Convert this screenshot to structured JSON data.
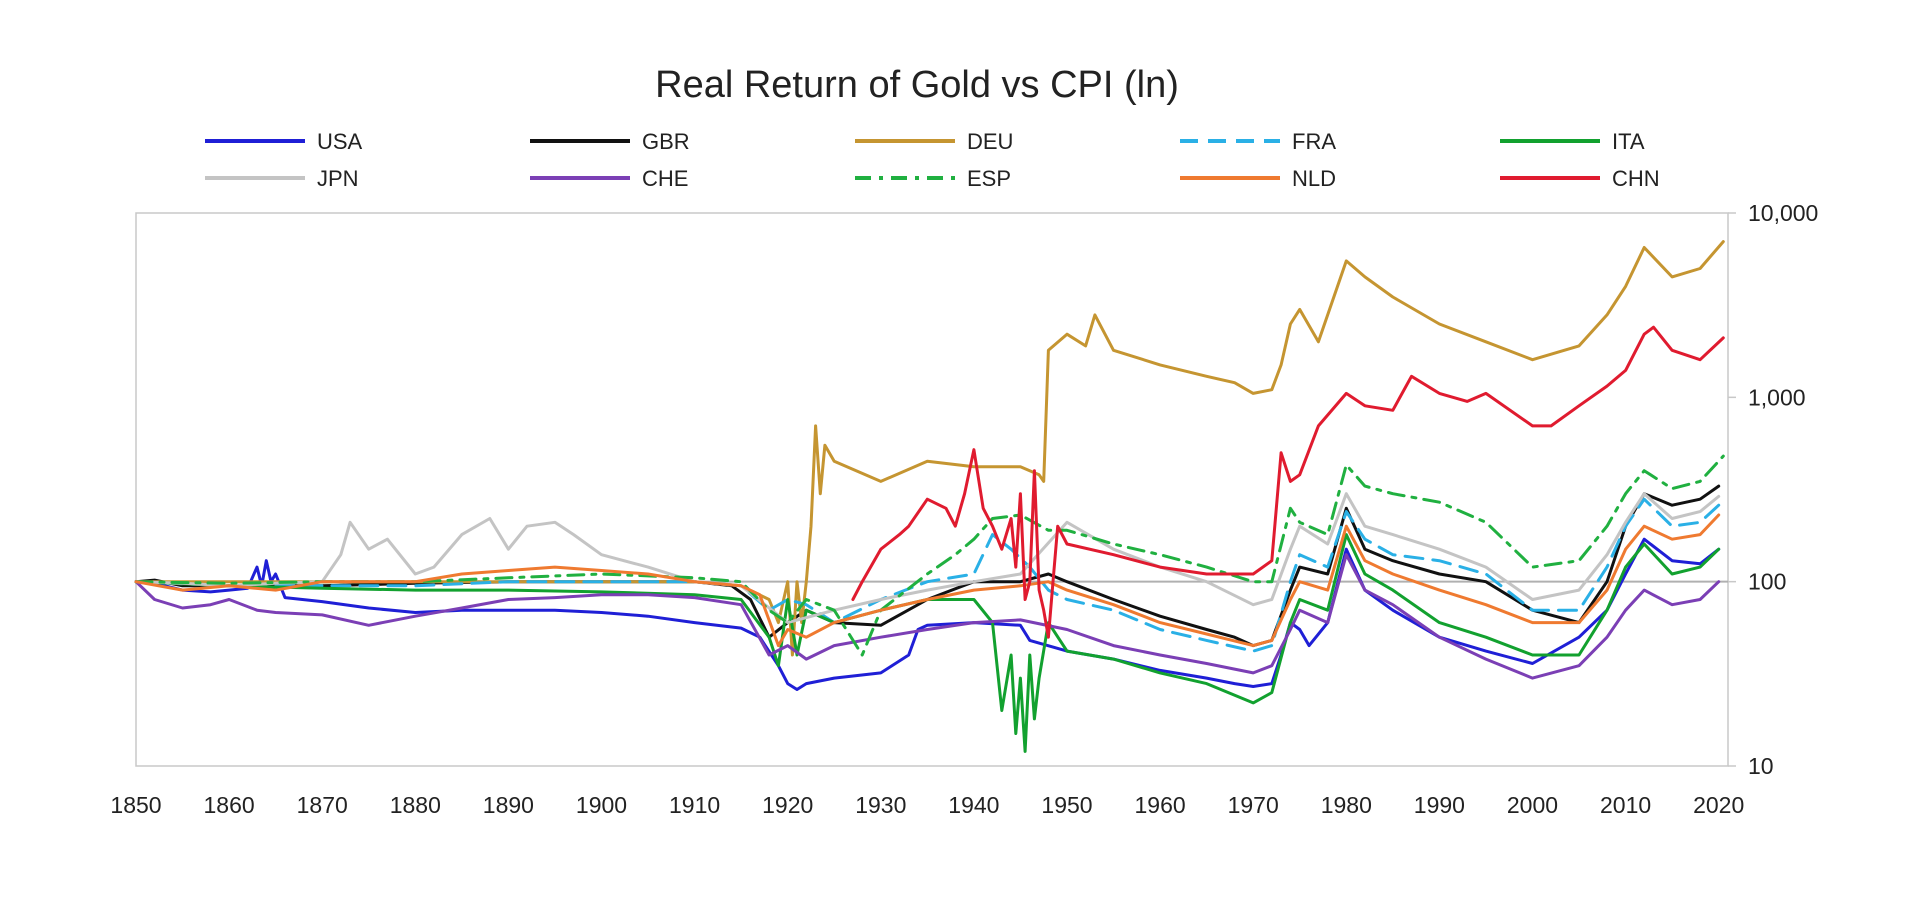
{
  "chart_data": {
    "type": "line",
    "title": "Real Return of Gold vs CPI (ln)",
    "xlabel": "",
    "ylabel": "",
    "y_scale": "log",
    "xlim": [
      1850,
      2021
    ],
    "ylim": [
      10,
      10000
    ],
    "reference_line": 100,
    "reference_color": "#b0b0b0",
    "grid": false,
    "legend_position": "top",
    "x_ticks": [
      {
        "value": 1850,
        "label": "1850"
      },
      {
        "value": 1860,
        "label": "1860"
      },
      {
        "value": 1870,
        "label": "1870"
      },
      {
        "value": 1880,
        "label": "1880"
      },
      {
        "value": 1890,
        "label": "1890"
      },
      {
        "value": 1900,
        "label": "1900"
      },
      {
        "value": 1910,
        "label": "1910"
      },
      {
        "value": 1920,
        "label": "1920"
      },
      {
        "value": 1930,
        "label": "1930"
      },
      {
        "value": 1940,
        "label": "1940"
      },
      {
        "value": 1950,
        "label": "1950"
      },
      {
        "value": 1960,
        "label": "1960"
      },
      {
        "value": 1970,
        "label": "1970"
      },
      {
        "value": 1980,
        "label": "1980"
      },
      {
        "value": 1990,
        "label": "1990"
      },
      {
        "value": 2000,
        "label": "2000"
      },
      {
        "value": 2010,
        "label": "2010"
      },
      {
        "value": 2020,
        "label": "2020"
      }
    ],
    "y_ticks": [
      {
        "value": 10,
        "label": "10"
      },
      {
        "value": 100,
        "label": "100"
      },
      {
        "value": 1000,
        "label": "1,000"
      },
      {
        "value": 10000,
        "label": "10,000"
      }
    ],
    "series": [
      {
        "name": "USA",
        "color": "#1f1fd6",
        "dash": "",
        "x": [
          1850,
          1852,
          1855,
          1858,
          1860,
          1862,
          1863,
          1863.5,
          1864,
          1864.5,
          1865,
          1866,
          1870,
          1875,
          1880,
          1885,
          1890,
          1895,
          1900,
          1905,
          1910,
          1915,
          1917,
          1919,
          1920,
          1921,
          1922,
          1925,
          1930,
          1933,
          1934,
          1935,
          1940,
          1945,
          1946,
          1950,
          1955,
          1960,
          1965,
          1968,
          1970,
          1972,
          1973,
          1974,
          1975,
          1976,
          1978,
          1980,
          1982,
          1985,
          1990,
          1995,
          2000,
          2005,
          2008,
          2010,
          2012,
          2015,
          2018,
          2020
        ],
        "y": [
          100,
          98,
          90,
          88,
          90,
          92,
          120,
          95,
          130,
          100,
          110,
          82,
          78,
          72,
          68,
          70,
          70,
          70,
          68,
          65,
          60,
          56,
          50,
          35,
          28,
          26,
          28,
          30,
          32,
          40,
          55,
          58,
          60,
          58,
          48,
          42,
          38,
          33,
          30,
          28,
          27,
          28,
          40,
          60,
          55,
          45,
          60,
          150,
          90,
          70,
          50,
          42,
          36,
          50,
          70,
          110,
          170,
          130,
          125,
          150
        ]
      },
      {
        "name": "GBR",
        "color": "#111111",
        "dash": "",
        "x": [
          1850,
          1852,
          1855,
          1860,
          1870,
          1880,
          1890,
          1900,
          1910,
          1914,
          1916,
          1918,
          1920,
          1922,
          1925,
          1930,
          1935,
          1940,
          1945,
          1948,
          1950,
          1955,
          1960,
          1965,
          1968,
          1970,
          1972,
          1974,
          1975,
          1978,
          1980,
          1982,
          1985,
          1990,
          1995,
          2000,
          2005,
          2008,
          2010,
          2012,
          2015,
          2018,
          2020
        ],
        "y": [
          100,
          102,
          95,
          95,
          95,
          98,
          100,
          100,
          100,
          95,
          80,
          50,
          60,
          70,
          60,
          58,
          80,
          100,
          100,
          110,
          100,
          80,
          65,
          55,
          50,
          45,
          48,
          90,
          120,
          110,
          250,
          150,
          130,
          110,
          100,
          70,
          60,
          100,
          200,
          300,
          260,
          280,
          330
        ]
      },
      {
        "name": "DEU",
        "color": "#c59531",
        "dash": "",
        "x": [
          1850,
          1860,
          1870,
          1880,
          1890,
          1900,
          1910,
          1915,
          1918,
          1919,
          1920,
          1920.5,
          1921,
          1921.5,
          1922,
          1922.5,
          1923,
          1923.5,
          1924,
          1925,
          1930,
          1935,
          1940,
          1945,
          1947,
          1947.5,
          1948,
          1950,
          1952,
          1953,
          1955,
          1960,
          1965,
          1968,
          1970,
          1972,
          1973,
          1974,
          1975,
          1977,
          1980,
          1982,
          1985,
          1990,
          1995,
          2000,
          2005,
          2008,
          2010,
          2012,
          2015,
          2018,
          2020.5
        ],
        "y": [
          100,
          100,
          100,
          100,
          100,
          100,
          100,
          95,
          80,
          60,
          100,
          40,
          100,
          60,
          100,
          200,
          700,
          300,
          550,
          450,
          350,
          450,
          420,
          420,
          380,
          350,
          1800,
          2200,
          1900,
          2800,
          1800,
          1500,
          1300,
          1200,
          1050,
          1100,
          1500,
          2500,
          3000,
          2000,
          5500,
          4500,
          3500,
          2500,
          2000,
          1600,
          1900,
          2800,
          4000,
          6500,
          4500,
          5000,
          7000
        ]
      },
      {
        "name": "FRA",
        "color": "#2ab0e6",
        "dash": "18,10",
        "x": [
          1850,
          1860,
          1870,
          1880,
          1890,
          1900,
          1910,
          1915,
          1918,
          1920,
          1922,
          1925,
          1930,
          1935,
          1940,
          1942,
          1944,
          1946,
          1948,
          1950,
          1955,
          1960,
          1965,
          1970,
          1972,
          1974,
          1975,
          1978,
          1980,
          1982,
          1985,
          1990,
          1995,
          2000,
          2005,
          2008,
          2010,
          2012,
          2015,
          2018,
          2020
        ],
        "y": [
          100,
          95,
          95,
          95,
          100,
          100,
          100,
          95,
          70,
          80,
          75,
          60,
          80,
          100,
          110,
          180,
          150,
          120,
          90,
          80,
          70,
          55,
          48,
          42,
          45,
          100,
          140,
          120,
          240,
          170,
          140,
          130,
          110,
          70,
          70,
          120,
          200,
          280,
          200,
          210,
          260
        ]
      },
      {
        "name": "ITA",
        "color": "#12a12f",
        "dash": "",
        "x": [
          1850,
          1860,
          1870,
          1880,
          1890,
          1900,
          1910,
          1915,
          1918,
          1919,
          1920,
          1921,
          1922,
          1925,
          1930,
          1935,
          1940,
          1942,
          1943,
          1944,
          1944.5,
          1945,
          1945.5,
          1946,
          1946.5,
          1947,
          1948,
          1950,
          1955,
          1960,
          1965,
          1970,
          1972,
          1974,
          1975,
          1978,
          1980,
          1982,
          1985,
          1990,
          1995,
          2000,
          2005,
          2008,
          2010,
          2012,
          2015,
          2018,
          2020
        ],
        "y": [
          100,
          95,
          92,
          90,
          90,
          88,
          85,
          80,
          50,
          35,
          80,
          40,
          70,
          60,
          70,
          80,
          80,
          60,
          20,
          40,
          15,
          30,
          12,
          40,
          18,
          30,
          60,
          42,
          38,
          32,
          28,
          22,
          25,
          60,
          80,
          70,
          180,
          110,
          90,
          60,
          50,
          40,
          40,
          70,
          120,
          160,
          110,
          120,
          150
        ]
      },
      {
        "name": "JPN",
        "color": "#c4c4c4",
        "dash": "",
        "x": [
          1850,
          1855,
          1860,
          1865,
          1870,
          1872,
          1873,
          1875,
          1877,
          1880,
          1882,
          1885,
          1888,
          1890,
          1892,
          1895,
          1897,
          1900,
          1905,
          1910,
          1915,
          1920,
          1925,
          1930,
          1935,
          1940,
          1945,
          1950,
          1955,
          1960,
          1965,
          1970,
          1972,
          1974,
          1975,
          1978,
          1980,
          1982,
          1985,
          1990,
          1995,
          2000,
          2005,
          2008,
          2010,
          2012,
          2015,
          2018,
          2020
        ],
        "y": [
          100,
          98,
          95,
          98,
          100,
          140,
          210,
          150,
          170,
          110,
          120,
          180,
          220,
          150,
          200,
          210,
          180,
          140,
          120,
          100,
          95,
          60,
          70,
          80,
          90,
          100,
          110,
          210,
          150,
          120,
          100,
          75,
          80,
          150,
          200,
          160,
          300,
          200,
          180,
          150,
          120,
          80,
          90,
          140,
          210,
          300,
          220,
          240,
          290
        ]
      },
      {
        "name": "CHE",
        "color": "#7b3fb5",
        "dash": "",
        "x": [
          1850,
          1852,
          1855,
          1858,
          1860,
          1863,
          1865,
          1870,
          1875,
          1880,
          1885,
          1890,
          1895,
          1900,
          1905,
          1910,
          1915,
          1918,
          1920,
          1922,
          1925,
          1930,
          1935,
          1940,
          1945,
          1950,
          1955,
          1960,
          1965,
          1970,
          1972,
          1974,
          1975,
          1978,
          1980,
          1982,
          1985,
          1990,
          1995,
          2000,
          2005,
          2008,
          2010,
          2012,
          2015,
          2018,
          2020
        ],
        "y": [
          100,
          80,
          72,
          75,
          80,
          70,
          68,
          66,
          58,
          65,
          72,
          80,
          82,
          85,
          85,
          82,
          75,
          40,
          45,
          38,
          45,
          50,
          55,
          60,
          62,
          55,
          45,
          40,
          36,
          32,
          35,
          55,
          70,
          60,
          140,
          90,
          75,
          50,
          38,
          30,
          35,
          50,
          70,
          90,
          75,
          80,
          100
        ]
      },
      {
        "name": "ESP",
        "color": "#20b040",
        "dash": "16,8,4,8",
        "x": [
          1850,
          1860,
          1870,
          1880,
          1890,
          1900,
          1910,
          1915,
          1918,
          1920,
          1922,
          1925,
          1928,
          1930,
          1935,
          1938,
          1940,
          1942,
          1945,
          1948,
          1950,
          1955,
          1960,
          1965,
          1970,
          1972,
          1974,
          1975,
          1978,
          1980,
          1982,
          1985,
          1990,
          1995,
          2000,
          2005,
          2008,
          2010,
          2012,
          2015,
          2018,
          2020.5
        ],
        "y": [
          100,
          98,
          100,
          100,
          105,
          110,
          105,
          100,
          70,
          60,
          80,
          70,
          40,
          70,
          110,
          140,
          170,
          220,
          230,
          190,
          190,
          160,
          140,
          120,
          100,
          100,
          250,
          210,
          180,
          430,
          330,
          300,
          270,
          210,
          120,
          130,
          200,
          300,
          400,
          320,
          350,
          480
        ]
      },
      {
        "name": "NLD",
        "color": "#ef7a30",
        "dash": "",
        "x": [
          1850,
          1855,
          1860,
          1865,
          1870,
          1875,
          1880,
          1885,
          1890,
          1895,
          1900,
          1905,
          1910,
          1915,
          1917,
          1919,
          1920,
          1922,
          1925,
          1930,
          1935,
          1940,
          1945,
          1948,
          1950,
          1955,
          1960,
          1965,
          1970,
          1972,
          1974,
          1975,
          1978,
          1980,
          1982,
          1985,
          1990,
          1995,
          2000,
          2005,
          2008,
          2010,
          2012,
          2015,
          2018,
          2020
        ],
        "y": [
          100,
          90,
          95,
          90,
          100,
          100,
          100,
          110,
          115,
          120,
          115,
          110,
          100,
          95,
          85,
          45,
          55,
          50,
          60,
          70,
          80,
          90,
          95,
          100,
          90,
          75,
          60,
          52,
          45,
          48,
          80,
          100,
          90,
          200,
          130,
          110,
          90,
          75,
          60,
          60,
          90,
          150,
          200,
          170,
          180,
          230
        ]
      },
      {
        "name": "CHN",
        "color": "#e01b2f",
        "dash": "",
        "x": [
          1927,
          1928,
          1930,
          1932,
          1933,
          1935,
          1937,
          1938,
          1939,
          1940,
          1941,
          1942,
          1943,
          1944,
          1944.5,
          1945,
          1945.5,
          1946,
          1946.5,
          1947,
          1947.5,
          1948,
          1948.5,
          1949,
          1950,
          1955,
          1960,
          1965,
          1970,
          1972,
          1973,
          1974,
          1975,
          1977,
          1980,
          1982,
          1985,
          1987,
          1990,
          1993,
          1995,
          2000,
          2002,
          2005,
          2008,
          2010,
          2012,
          2013,
          2015,
          2018,
          2020.5
        ],
        "y": [
          80,
          100,
          150,
          180,
          200,
          280,
          250,
          200,
          300,
          520,
          250,
          200,
          150,
          220,
          120,
          300,
          80,
          100,
          400,
          90,
          70,
          50,
          100,
          200,
          160,
          140,
          120,
          110,
          110,
          130,
          500,
          350,
          380,
          700,
          1050,
          900,
          850,
          1300,
          1050,
          950,
          1050,
          700,
          700,
          900,
          1150,
          1400,
          2200,
          2400,
          1800,
          1600,
          2100
        ]
      }
    ]
  }
}
